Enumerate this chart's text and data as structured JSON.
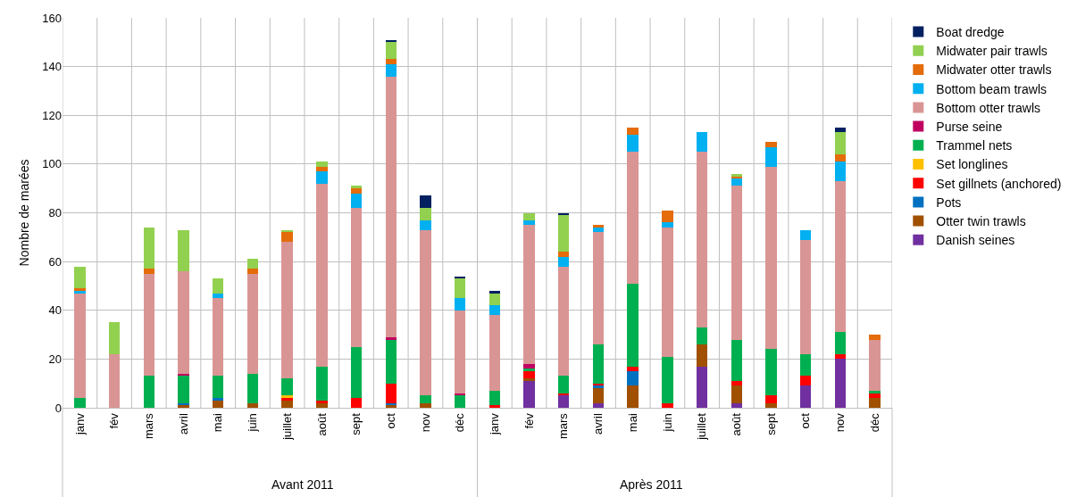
{
  "chart_data": {
    "type": "bar",
    "stacked": true,
    "ylabel": "Nombre de marées",
    "categories": [
      "janv",
      "fév",
      "mars",
      "avril",
      "mai",
      "juin",
      "juillet",
      "août",
      "sept",
      "oct",
      "nov",
      "déc",
      "janv",
      "fév",
      "mars",
      "avril",
      "mai",
      "juin",
      "juillet",
      "août",
      "sept",
      "oct",
      "nov",
      "déc"
    ],
    "annotations": [
      "Avant 2011",
      "Après 2011"
    ],
    "ylim": [
      0,
      160
    ],
    "yticks": [
      0,
      20,
      40,
      60,
      80,
      100,
      120,
      140,
      160
    ],
    "grid": true,
    "legend": "right",
    "series": [
      {
        "name": "Danish seines",
        "color": "#7030a0",
        "values": [
          0,
          0,
          0,
          0,
          0,
          0,
          0,
          0,
          0,
          0,
          0,
          0,
          0,
          11,
          5,
          2,
          0,
          0,
          17,
          2,
          0,
          9,
          20,
          0
        ]
      },
      {
        "name": "Otter twin trawls",
        "color": "#a05000",
        "values": [
          0,
          0,
          0,
          1,
          3,
          2,
          3,
          2,
          0,
          1,
          2,
          0,
          0,
          1,
          0,
          6,
          9,
          0,
          9,
          7,
          2,
          0,
          0,
          4
        ]
      },
      {
        "name": "Pots",
        "color": "#0070c0",
        "values": [
          0,
          0,
          0,
          1,
          1,
          0,
          0,
          0,
          0,
          1,
          0,
          0,
          0,
          0,
          0,
          1,
          6,
          0,
          0,
          0,
          0,
          0,
          0,
          0
        ]
      },
      {
        "name": "Set gillnets (anchored)",
        "color": "#ff0000",
        "values": [
          0,
          0,
          0,
          0,
          0,
          0,
          1,
          1,
          4,
          8,
          0,
          0,
          1,
          3,
          1,
          1,
          2,
          2,
          0,
          2,
          3,
          4,
          2,
          2
        ]
      },
      {
        "name": "Set longlines",
        "color": "#ffc000",
        "values": [
          0,
          0,
          0,
          0,
          0,
          0,
          1,
          0,
          0,
          0,
          0,
          0,
          0,
          0,
          0,
          0,
          0,
          0,
          0,
          0,
          0,
          0,
          0,
          0
        ]
      },
      {
        "name": "Trammel nets",
        "color": "#00b050",
        "values": [
          4,
          0,
          13,
          11,
          9,
          12,
          7,
          14,
          21,
          18,
          3,
          5,
          6,
          1,
          7,
          16,
          34,
          19,
          7,
          17,
          19,
          9,
          9,
          1
        ]
      },
      {
        "name": "Purse seine",
        "color": "#c00060",
        "values": [
          0,
          0,
          0,
          1,
          0,
          0,
          0,
          0,
          0,
          1,
          0,
          1,
          0,
          2,
          0,
          0,
          0,
          0,
          0,
          0,
          0,
          0,
          0,
          0
        ]
      },
      {
        "name": "Bottom otter trawls",
        "color": "#d99594",
        "values": [
          43,
          22,
          42,
          42,
          32,
          41,
          56,
          75,
          57,
          107,
          68,
          34,
          31,
          57,
          45,
          46,
          54,
          53,
          72,
          63,
          75,
          47,
          62,
          21
        ]
      },
      {
        "name": "Bottom beam trawls",
        "color": "#00b0f0",
        "values": [
          1,
          0,
          0,
          0,
          2,
          0,
          0,
          5,
          6,
          5,
          4,
          5,
          4,
          2,
          4,
          2,
          7,
          2,
          8,
          3,
          8,
          4,
          8,
          0
        ]
      },
      {
        "name": "Midwater otter trawls",
        "color": "#e46c0a",
        "values": [
          1,
          0,
          2,
          0,
          0,
          2,
          4,
          2,
          2,
          2,
          0,
          0,
          0,
          0,
          2,
          1,
          3,
          5,
          0,
          1,
          2,
          0,
          3,
          2
        ]
      },
      {
        "name": "Midwater pair trawls",
        "color": "#92d050",
        "values": [
          9,
          13,
          17,
          17,
          6,
          4,
          1,
          2,
          1,
          7,
          5,
          8,
          5,
          3,
          15,
          0,
          0,
          0,
          0,
          1,
          0,
          0,
          9,
          0
        ]
      },
      {
        "name": "Boat dredge",
        "color": "#002060",
        "values": [
          0,
          0,
          0,
          0,
          0,
          0,
          0,
          0,
          0,
          1,
          5,
          1,
          1,
          0,
          1,
          0,
          0,
          0,
          0,
          0,
          0,
          0,
          2,
          0
        ]
      }
    ]
  }
}
